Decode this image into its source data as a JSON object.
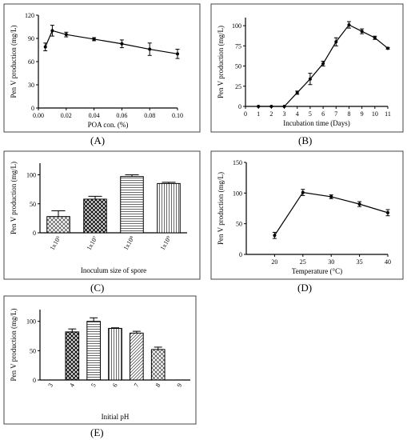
{
  "chart_data": [
    {
      "id": "A",
      "caption": "(A)",
      "type": "line",
      "xlabel": "POA con. (%)",
      "ylabel": "Pen V production (mg/L)",
      "xlim": [
        0,
        0.1
      ],
      "ylim": [
        0,
        120
      ],
      "xticks": [
        0.0,
        0.02,
        0.04,
        0.06,
        0.08,
        0.1
      ],
      "xticklabels": [
        "0.00",
        "0.02",
        "0.04",
        "0.06",
        "0.08",
        "0.10"
      ],
      "yticks": [
        0,
        30,
        60,
        90,
        120
      ],
      "yticklabels": [
        "0",
        "30",
        "60",
        "90",
        "120"
      ],
      "x": [
        0.005,
        0.01,
        0.02,
        0.04,
        0.06,
        0.08,
        0.1
      ],
      "y": [
        79,
        100,
        95,
        89,
        83,
        76,
        70
      ],
      "err": [
        5,
        7,
        3,
        2,
        5,
        8,
        6
      ]
    },
    {
      "id": "B",
      "caption": "(B)",
      "type": "line",
      "xlabel": "Incubation time (Days)",
      "ylabel": "Pen V production (mg/L)",
      "xlim": [
        0,
        11
      ],
      "ylim": [
        0,
        110
      ],
      "xticks": [
        0,
        1,
        2,
        3,
        4,
        5,
        6,
        7,
        8,
        9,
        10,
        11
      ],
      "xticklabels": [
        "0",
        "1",
        "2",
        "3",
        "4",
        "5",
        "6",
        "7",
        "8",
        "9",
        "10",
        "11"
      ],
      "yticks": [
        0,
        25,
        50,
        75,
        100
      ],
      "yticklabels": [
        "0",
        "25",
        "50",
        "75",
        "100"
      ],
      "x": [
        1,
        2,
        3,
        4,
        5,
        6,
        7,
        8,
        9,
        10,
        11
      ],
      "y": [
        0,
        0,
        0,
        17,
        34,
        53,
        80,
        101,
        93,
        85,
        72
      ],
      "err": [
        0,
        0,
        0,
        2,
        7,
        3,
        5,
        4,
        3,
        2,
        1
      ]
    },
    {
      "id": "C",
      "caption": "(C)",
      "type": "bar",
      "xlabel": "Inoculum size of spore",
      "ylabel": "Pen V production (mg/L)",
      "ylim": [
        0,
        120
      ],
      "yticks": [
        0,
        50,
        100
      ],
      "yticklabels": [
        "0",
        "50",
        "100"
      ],
      "categories": [
        "1x10⁵",
        "1x10⁷",
        "1x10⁸",
        "1x10⁹"
      ],
      "values": [
        28,
        58,
        97,
        85
      ],
      "err": [
        10,
        5,
        3,
        2
      ],
      "patterns": [
        "hatch-a",
        "checker",
        "hline",
        "vline"
      ]
    },
    {
      "id": "D",
      "caption": "(D)",
      "type": "line",
      "xlabel": "Temperature (°C)",
      "ylabel": "Pen V production (mg/L)",
      "xlim": [
        15,
        40
      ],
      "ylim": [
        0,
        150
      ],
      "xticks": [
        20,
        25,
        30,
        35,
        40
      ],
      "xticklabels": [
        "20",
        "25",
        "30",
        "35",
        "40"
      ],
      "yticks": [
        0,
        50,
        100,
        150
      ],
      "yticklabels": [
        "0",
        "50",
        "100",
        "150"
      ],
      "x": [
        20,
        25,
        30,
        35,
        40
      ],
      "y": [
        31,
        101,
        94,
        82,
        68
      ],
      "err": [
        5,
        5,
        3,
        4,
        5
      ]
    },
    {
      "id": "E",
      "caption": "(E)",
      "type": "bar",
      "xlabel": "Initial pH",
      "ylabel": "Pen V production (mg/L)",
      "ylim": [
        0,
        120
      ],
      "yticks": [
        0,
        50,
        100
      ],
      "yticklabels": [
        "0",
        "50",
        "100"
      ],
      "categories": [
        "3",
        "4",
        "5",
        "6",
        "7",
        "8",
        "9"
      ],
      "values": [
        0,
        82,
        100,
        88,
        80,
        52,
        0
      ],
      "err": [
        0,
        5,
        6,
        1,
        3,
        4,
        0
      ],
      "patterns": [
        "none",
        "checker",
        "hline",
        "vline",
        "hatch-b",
        "hatch-a",
        "none"
      ]
    }
  ]
}
